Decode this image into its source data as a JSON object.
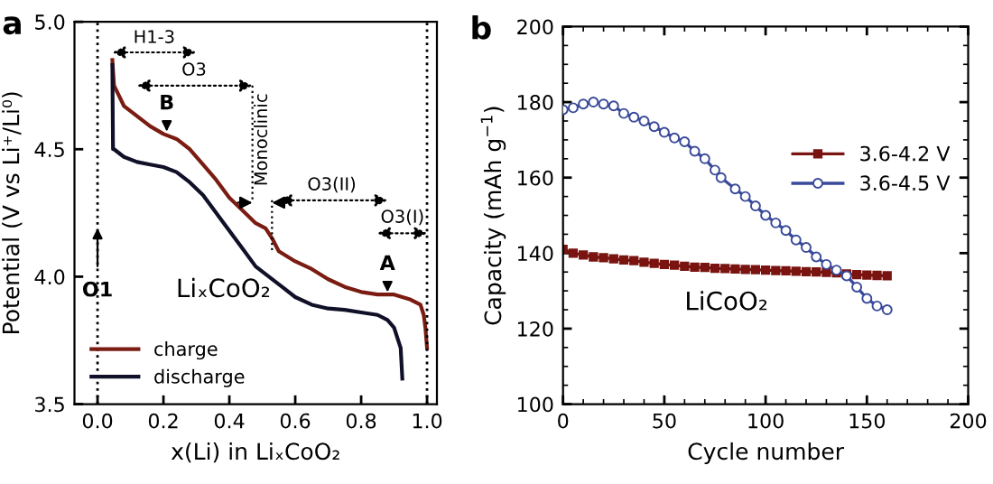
{
  "chart_data": [
    {
      "type": "line",
      "ylabel": "Potential (V vs Li⁺/Li⁰)",
      "xlabel": "x(Li) in LiₓCoO₂",
      "xlim": [
        -0.07,
        1.03
      ],
      "ylim": [
        3.5,
        5.0
      ],
      "xticks": [
        {
          "value": 0,
          "label": "0.0"
        },
        0.2,
        0.4,
        0.6,
        0.8,
        {
          "value": 1,
          "label": "1.0"
        }
      ],
      "yticks": [
        3.5,
        {
          "value": 4,
          "label": "4.0"
        },
        4.5,
        {
          "value": 5,
          "label": "5.0"
        }
      ],
      "legend": "bottom left",
      "grid": false,
      "marker": "none",
      "line_style": "solid",
      "series": [
        {
          "name": "charge",
          "color": "#7a1c12",
          "x": [
            1.0,
            0.995,
            0.99,
            0.98,
            0.95,
            0.9,
            0.85,
            0.8,
            0.75,
            0.7,
            0.65,
            0.6,
            0.55,
            0.53,
            0.51,
            0.48,
            0.44,
            0.4,
            0.36,
            0.32,
            0.28,
            0.24,
            0.2,
            0.16,
            0.12,
            0.08,
            0.05,
            0.045
          ],
          "values": [
            3.72,
            3.8,
            3.85,
            3.89,
            3.91,
            3.93,
            3.93,
            3.94,
            3.96,
            3.99,
            4.03,
            4.06,
            4.1,
            4.15,
            4.19,
            4.21,
            4.26,
            4.31,
            4.38,
            4.44,
            4.5,
            4.54,
            4.56,
            4.59,
            4.63,
            4.67,
            4.75,
            4.85
          ]
        },
        {
          "name": "discharge",
          "color": "#101028",
          "x": [
            0.045,
            0.047,
            0.05,
            0.08,
            0.12,
            0.16,
            0.2,
            0.24,
            0.28,
            0.32,
            0.36,
            0.4,
            0.44,
            0.48,
            0.52,
            0.56,
            0.6,
            0.65,
            0.7,
            0.75,
            0.8,
            0.85,
            0.88,
            0.9,
            0.92,
            0.925
          ],
          "values": [
            4.83,
            4.5,
            4.5,
            4.47,
            4.45,
            4.44,
            4.43,
            4.41,
            4.37,
            4.32,
            4.25,
            4.18,
            4.11,
            4.04,
            4.0,
            3.96,
            3.92,
            3.89,
            3.875,
            3.87,
            3.86,
            3.85,
            3.83,
            3.8,
            3.72,
            3.6
          ]
        }
      ],
      "ref_lines": [
        {
          "axis": "x",
          "value": 0,
          "color": "#000000",
          "line_style": "dotted"
        },
        {
          "axis": "x",
          "value": 1,
          "color": "#000000",
          "line_style": "dotted"
        }
      ],
      "annotations": [
        "a",
        "LiₓCoO₂",
        "H1-3",
        "O3",
        "Monoclinic",
        "O3(II)",
        "O3(I)",
        {
          "text": "B",
          "x": 0.21,
          "y": 4.56
        },
        {
          "text": "A",
          "x": 0.88,
          "y": 3.93
        },
        {
          "text": "O1",
          "x": 0,
          "y": 4.2
        }
      ]
    },
    {
      "type": "line",
      "ylabel": "Capacity (mAh g$^{−1}$)",
      "xlabel": "Cycle number",
      "xlim": [
        0,
        200
      ],
      "ylim": [
        100,
        200
      ],
      "xticks": [
        0,
        50,
        100,
        150,
        200
      ],
      "yticks": [
        100,
        120,
        140,
        160,
        180,
        200
      ],
      "legend": "right",
      "grid": false,
      "line_style": "solid",
      "series": [
        {
          "name": "3.6-4.2 V",
          "color": "#7a1410",
          "marker": "square",
          "x": [
            0,
            5,
            10,
            15,
            20,
            25,
            30,
            35,
            40,
            45,
            50,
            55,
            60,
            65,
            70,
            75,
            80,
            85,
            90,
            95,
            100,
            105,
            110,
            115,
            120,
            125,
            130,
            135,
            140,
            145,
            150,
            155,
            160
          ],
          "values": [
            141,
            140,
            139.5,
            139,
            138.8,
            138.5,
            138.2,
            138,
            137.6,
            137.3,
            137,
            136.8,
            136.5,
            136.3,
            136.2,
            136,
            135.9,
            135.8,
            135.7,
            135.6,
            135.5,
            135.4,
            135.3,
            135.2,
            135.1,
            135,
            134.9,
            134.8,
            134.5,
            134.3,
            134.2,
            134.1,
            134
          ]
        },
        {
          "name": "3.6-4.5 V",
          "color": "#3a4a9a",
          "marker": "circle",
          "x": [
            0,
            5,
            10,
            15,
            20,
            25,
            30,
            35,
            40,
            45,
            50,
            55,
            60,
            65,
            70,
            75,
            78,
            85,
            90,
            95,
            100,
            105,
            110,
            115,
            120,
            125,
            130,
            135,
            140,
            145,
            150,
            155,
            160
          ],
          "values": [
            178,
            178.5,
            179.5,
            180,
            179.5,
            179,
            177,
            176,
            175,
            173.5,
            172,
            170.5,
            169.5,
            167,
            165,
            162,
            160,
            157,
            155,
            152.5,
            150,
            148,
            146,
            143.5,
            141.5,
            139,
            137,
            135.5,
            134,
            131,
            128,
            126,
            125
          ]
        }
      ],
      "annotations": [
        "b",
        "LiCoO₂"
      ]
    }
  ]
}
